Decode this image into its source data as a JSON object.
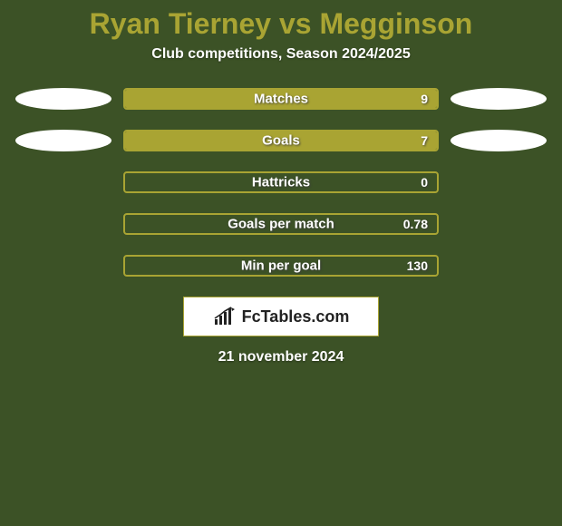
{
  "background_color": "#3c5226",
  "title": {
    "player1": "Ryan Tierney",
    "vs": "vs",
    "player2": "Megginson",
    "color": "#a9a433",
    "fontsize": 32
  },
  "subtitle": {
    "text": "Club competitions, Season 2024/2025",
    "color": "#ffffff",
    "fontsize": 16
  },
  "ellipse_color": "#ffffff",
  "bar_border_color": "#a9a433",
  "bar_fill_color": "#a9a433",
  "stats": [
    {
      "label": "Matches",
      "value": "9",
      "fill_pct": 100,
      "left_ellipse": true,
      "right_ellipse": true
    },
    {
      "label": "Goals",
      "value": "7",
      "fill_pct": 100,
      "left_ellipse": true,
      "right_ellipse": true
    },
    {
      "label": "Hattricks",
      "value": "0",
      "fill_pct": 0,
      "left_ellipse": false,
      "right_ellipse": false
    },
    {
      "label": "Goals per match",
      "value": "0.78",
      "fill_pct": 0,
      "left_ellipse": false,
      "right_ellipse": false
    },
    {
      "label": "Min per goal",
      "value": "130",
      "fill_pct": 0,
      "left_ellipse": false,
      "right_ellipse": false
    }
  ],
  "logo": {
    "text": "FcTables.com",
    "box_bg": "#ffffff",
    "box_border": "#a9a433",
    "text_color": "#222222",
    "icon_color": "#222222"
  },
  "date": {
    "text": "21 november 2024",
    "color": "#ffffff",
    "fontsize": 16
  }
}
